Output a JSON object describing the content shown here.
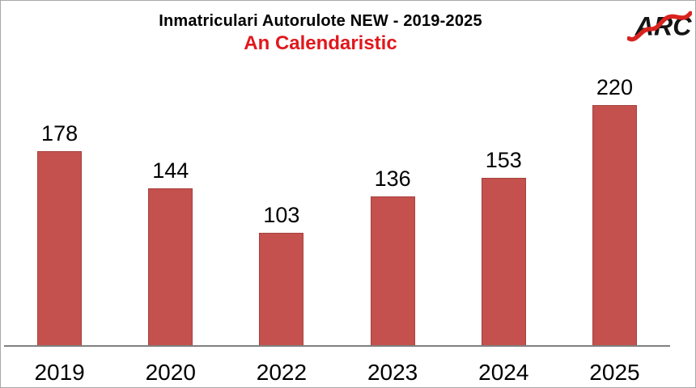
{
  "header": {
    "title": "Inmatriculari Autorulote NEW - 2019-2025",
    "subtitle": "An Calendaristic"
  },
  "logo": {
    "text": "ARC",
    "swoosh_icon": "red-wave-swoosh"
  },
  "colors": {
    "bar": "#c4514d",
    "bar_border": "#a6413e",
    "subtitle": "#e0181c",
    "axis": "#808080",
    "title": "#000000",
    "frame": "#a8a8a8"
  },
  "chart_data": {
    "type": "bar",
    "categories": [
      "2019",
      "2020",
      "2022",
      "2023",
      "2024",
      "2025"
    ],
    "values": [
      178,
      144,
      103,
      136,
      153,
      220
    ],
    "title": "Inmatriculari Autorulote NEW - 2019-2025",
    "subtitle": "An Calendaristic",
    "xlabel": "",
    "ylabel": "",
    "ylim": [
      0,
      250
    ],
    "grid": false,
    "legend": false,
    "data_labels": true,
    "bar_color": "#c4514d"
  }
}
